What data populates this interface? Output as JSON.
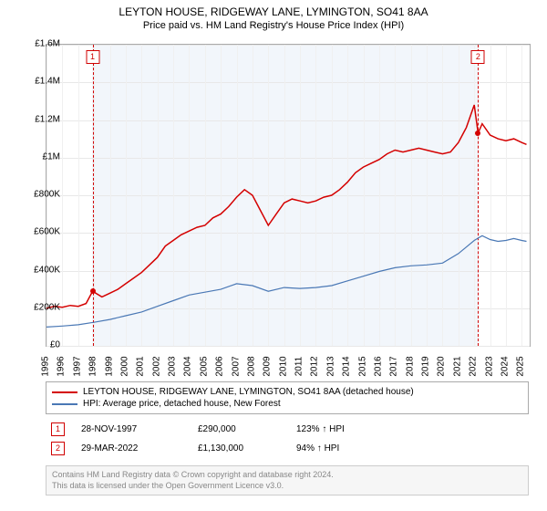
{
  "title": {
    "main": "LEYTON HOUSE, RIDGEWAY LANE, LYMINGTON, SO41 8AA",
    "sub": "Price paid vs. HM Land Registry's House Price Index (HPI)"
  },
  "chart": {
    "type": "line",
    "y_axis": {
      "min": 0,
      "max": 1600000,
      "step": 200000,
      "labels": [
        "£0",
        "£200K",
        "£400K",
        "£600K",
        "£800K",
        "£1M",
        "£1.2M",
        "£1.4M",
        "£1.6M"
      ]
    },
    "x_axis": {
      "min": 1995,
      "max": 2025.5,
      "labels": [
        "1995",
        "1996",
        "1997",
        "1998",
        "1999",
        "2000",
        "2001",
        "2002",
        "2003",
        "2004",
        "2005",
        "2006",
        "2007",
        "2008",
        "2009",
        "2010",
        "2011",
        "2012",
        "2013",
        "2014",
        "2015",
        "2016",
        "2017",
        "2018",
        "2019",
        "2020",
        "2021",
        "2022",
        "2023",
        "2024",
        "2025"
      ]
    },
    "highlight_band": {
      "color": "#f2f6fb",
      "x_start": 1997.9,
      "x_end": 2022.25
    },
    "series": [
      {
        "name": "price_paid",
        "color": "#d40000",
        "width": 1.5,
        "points": [
          [
            1995,
            200000
          ],
          [
            1995.5,
            210000
          ],
          [
            1996,
            205000
          ],
          [
            1996.5,
            215000
          ],
          [
            1997,
            210000
          ],
          [
            1997.5,
            225000
          ],
          [
            1997.91,
            290000
          ],
          [
            1998.5,
            260000
          ],
          [
            1999,
            280000
          ],
          [
            1999.5,
            300000
          ],
          [
            2000,
            330000
          ],
          [
            2000.5,
            360000
          ],
          [
            2001,
            390000
          ],
          [
            2001.5,
            430000
          ],
          [
            2002,
            470000
          ],
          [
            2002.5,
            530000
          ],
          [
            2003,
            560000
          ],
          [
            2003.5,
            590000
          ],
          [
            2004,
            610000
          ],
          [
            2004.5,
            630000
          ],
          [
            2005,
            640000
          ],
          [
            2005.5,
            680000
          ],
          [
            2006,
            700000
          ],
          [
            2006.5,
            740000
          ],
          [
            2007,
            790000
          ],
          [
            2007.5,
            830000
          ],
          [
            2008,
            800000
          ],
          [
            2008.5,
            720000
          ],
          [
            2009,
            640000
          ],
          [
            2009.5,
            700000
          ],
          [
            2010,
            760000
          ],
          [
            2010.5,
            780000
          ],
          [
            2011,
            770000
          ],
          [
            2011.5,
            760000
          ],
          [
            2012,
            770000
          ],
          [
            2012.5,
            790000
          ],
          [
            2013,
            800000
          ],
          [
            2013.5,
            830000
          ],
          [
            2014,
            870000
          ],
          [
            2014.5,
            920000
          ],
          [
            2015,
            950000
          ],
          [
            2015.5,
            970000
          ],
          [
            2016,
            990000
          ],
          [
            2016.5,
            1020000
          ],
          [
            2017,
            1040000
          ],
          [
            2017.5,
            1030000
          ],
          [
            2018,
            1040000
          ],
          [
            2018.5,
            1050000
          ],
          [
            2019,
            1040000
          ],
          [
            2019.5,
            1030000
          ],
          [
            2020,
            1020000
          ],
          [
            2020.5,
            1030000
          ],
          [
            2021,
            1080000
          ],
          [
            2021.5,
            1160000
          ],
          [
            2022,
            1280000
          ],
          [
            2022.24,
            1130000
          ],
          [
            2022.5,
            1180000
          ],
          [
            2023,
            1120000
          ],
          [
            2023.5,
            1100000
          ],
          [
            2024,
            1090000
          ],
          [
            2024.5,
            1100000
          ],
          [
            2025,
            1080000
          ],
          [
            2025.3,
            1070000
          ]
        ]
      },
      {
        "name": "hpi",
        "color": "#4a78b5",
        "width": 1.2,
        "points": [
          [
            1995,
            100000
          ],
          [
            1996,
            105000
          ],
          [
            1997,
            112000
          ],
          [
            1998,
            125000
          ],
          [
            1999,
            140000
          ],
          [
            2000,
            160000
          ],
          [
            2001,
            180000
          ],
          [
            2002,
            210000
          ],
          [
            2003,
            240000
          ],
          [
            2004,
            270000
          ],
          [
            2005,
            285000
          ],
          [
            2006,
            300000
          ],
          [
            2007,
            330000
          ],
          [
            2008,
            320000
          ],
          [
            2009,
            290000
          ],
          [
            2010,
            310000
          ],
          [
            2011,
            305000
          ],
          [
            2012,
            310000
          ],
          [
            2013,
            320000
          ],
          [
            2014,
            345000
          ],
          [
            2015,
            370000
          ],
          [
            2016,
            395000
          ],
          [
            2017,
            415000
          ],
          [
            2018,
            425000
          ],
          [
            2019,
            430000
          ],
          [
            2020,
            440000
          ],
          [
            2021,
            490000
          ],
          [
            2022,
            560000
          ],
          [
            2022.5,
            585000
          ],
          [
            2023,
            565000
          ],
          [
            2023.5,
            555000
          ],
          [
            2024,
            560000
          ],
          [
            2024.5,
            570000
          ],
          [
            2025,
            560000
          ],
          [
            2025.3,
            555000
          ]
        ]
      }
    ],
    "markers": [
      {
        "idx": "1",
        "x": 1997.91,
        "y": 290000,
        "box_y": 60000,
        "dot_color": "#d40000"
      },
      {
        "idx": "2",
        "x": 2022.24,
        "y": 1130000,
        "box_y": 60000,
        "dot_color": "#d40000"
      }
    ]
  },
  "legend": {
    "items": [
      {
        "color": "#d40000",
        "label": "LEYTON HOUSE, RIDGEWAY LANE, LYMINGTON, SO41 8AA (detached house)"
      },
      {
        "color": "#4a78b5",
        "label": "HPI: Average price, detached house, New Forest"
      }
    ]
  },
  "sales": [
    {
      "idx": "1",
      "date": "28-NOV-1997",
      "price": "£290,000",
      "pct": "123% ↑ HPI"
    },
    {
      "idx": "2",
      "date": "29-MAR-2022",
      "price": "£1,130,000",
      "pct": "94% ↑ HPI"
    }
  ],
  "footer": {
    "line1": "Contains HM Land Registry data © Crown copyright and database right 2024.",
    "line2": "This data is licensed under the Open Government Licence v3.0."
  }
}
